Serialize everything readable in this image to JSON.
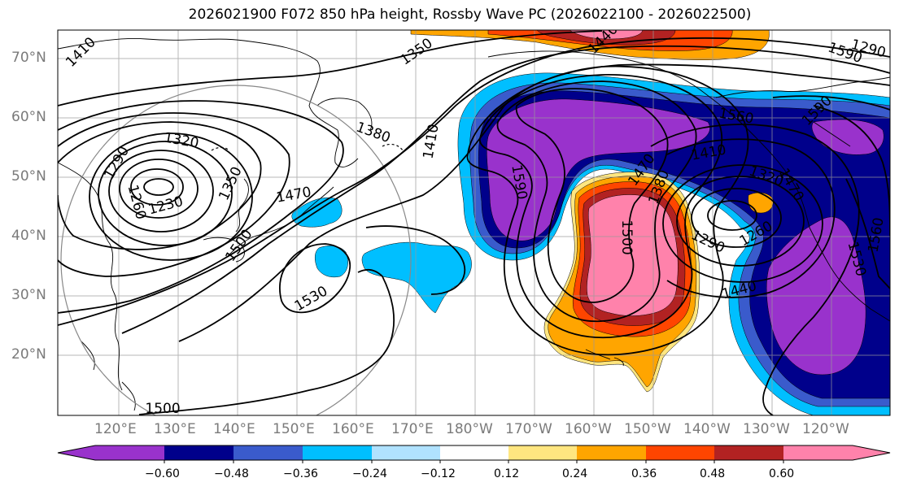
{
  "title": "2026021900 F072 850 hPa height, Rossby Wave PC (2026022100 - 2026022500)",
  "map": {
    "lon_labels": [
      "120°E",
      "130°E",
      "140°E",
      "150°E",
      "160°E",
      "170°E",
      "180°W",
      "170°W",
      "160°W",
      "150°W",
      "140°W",
      "130°W",
      "120°W"
    ],
    "lat_labels": [
      "70°N",
      "60°N",
      "50°N",
      "40°N",
      "30°N",
      "20°N"
    ],
    "contour_labels": [
      "1410",
      "1350",
      "1380",
      "1410",
      "1320",
      "1290",
      "1230",
      "1260",
      "1350",
      "1470",
      "1500",
      "1530",
      "1500",
      "1440",
      "1560",
      "1590",
      "1590",
      "1470",
      "1410",
      "1380",
      "1320",
      "1500",
      "1290",
      "1260",
      "1440",
      "1590",
      "1530",
      "1560",
      "1470",
      "1290"
    ]
  },
  "colorbar": {
    "ticks": [
      "−0.60",
      "−0.48",
      "−0.36",
      "−0.24",
      "−0.12",
      "0.12",
      "0.24",
      "0.36",
      "0.48",
      "0.60"
    ],
    "colors": [
      "#9932cc",
      "#00008b",
      "#3a5bcc",
      "#00bfff",
      "#b0e2ff",
      "#ffffff",
      "#ffe680",
      "#ffa500",
      "#ff4500",
      "#b22222",
      "#ff82ab"
    ]
  }
}
